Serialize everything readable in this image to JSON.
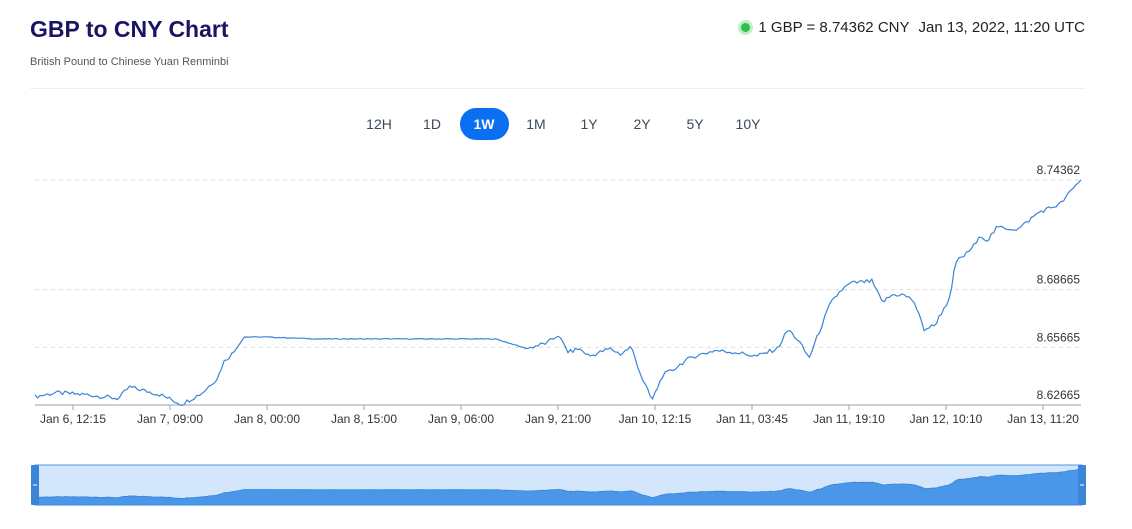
{
  "header": {
    "title": "GBP to CNY Chart",
    "subtitle": "British Pound to Chinese Yuan Renminbi",
    "rate_text": "1 GBP = 8.74362 CNY",
    "timestamp": "Jan 13, 2022, 11:20 UTC",
    "status_color": "#2fbf4a"
  },
  "tabs": [
    {
      "label": "12H",
      "active": false
    },
    {
      "label": "1D",
      "active": false
    },
    {
      "label": "1W",
      "active": true
    },
    {
      "label": "1M",
      "active": false
    },
    {
      "label": "1Y",
      "active": false
    },
    {
      "label": "2Y",
      "active": false
    },
    {
      "label": "5Y",
      "active": false
    },
    {
      "label": "10Y",
      "active": false
    }
  ],
  "colors": {
    "accent": "#0a6ff0",
    "line": "#3b84d6",
    "navigator_fill": "#4a97ea",
    "navigator_bg": "#d4e6fb"
  },
  "chart_data": {
    "type": "line",
    "title": "GBP to CNY Chart",
    "x_tick_labels": [
      "Jan 6, 12:15",
      "Jan 7, 09:00",
      "Jan 8, 00:00",
      "Jan 8, 15:00",
      "Jan 9, 06:00",
      "Jan 9, 21:00",
      "Jan 10, 12:15",
      "Jan 11, 03:45",
      "Jan 11, 19:10",
      "Jan 12, 10:10",
      "Jan 13, 11:20"
    ],
    "y_ticks": [
      8.62665,
      8.65665,
      8.68665,
      8.74362
    ],
    "y_tick_labels": [
      "8.62665",
      "8.65665",
      "8.68665",
      "8.74362"
    ],
    "ylim": [
      8.62665,
      8.74362
    ],
    "grid": "dashed horizontal",
    "series": [
      {
        "x": [
          0,
          0.02,
          0.05,
          0.08,
          0.09,
          0.12,
          0.14,
          0.16,
          0.175,
          0.18,
          0.19,
          0.2,
          0.22,
          0.27,
          0.32,
          0.38,
          0.44,
          0.47,
          0.49,
          0.5,
          0.51,
          0.52,
          0.53,
          0.55,
          0.56,
          0.57,
          0.58,
          0.59,
          0.6,
          0.61,
          0.62,
          0.63,
          0.65,
          0.67,
          0.69,
          0.71,
          0.72,
          0.73,
          0.74,
          0.75,
          0.76,
          0.77,
          0.78,
          0.8,
          0.81,
          0.82,
          0.83,
          0.84,
          0.85,
          0.86,
          0.87,
          0.875,
          0.88,
          0.89,
          0.9,
          0.905,
          0.91,
          0.92,
          0.94,
          0.96,
          0.98,
          1.0
        ],
        "values": [
          8.631,
          8.633,
          8.632,
          8.63,
          8.636,
          8.632,
          8.627,
          8.633,
          8.641,
          8.649,
          8.654,
          8.662,
          8.662,
          8.661,
          8.661,
          8.661,
          8.661,
          8.656,
          8.659,
          8.663,
          8.654,
          8.656,
          8.652,
          8.656,
          8.653,
          8.657,
          8.641,
          8.629,
          8.642,
          8.645,
          8.649,
          8.652,
          8.655,
          8.654,
          8.652,
          8.656,
          8.666,
          8.66,
          8.651,
          8.665,
          8.679,
          8.686,
          8.69,
          8.691,
          8.68,
          8.684,
          8.684,
          8.681,
          8.666,
          8.668,
          8.678,
          8.682,
          8.701,
          8.705,
          8.711,
          8.715,
          8.712,
          8.719,
          8.718,
          8.727,
          8.731,
          8.744
        ]
      }
    ]
  }
}
